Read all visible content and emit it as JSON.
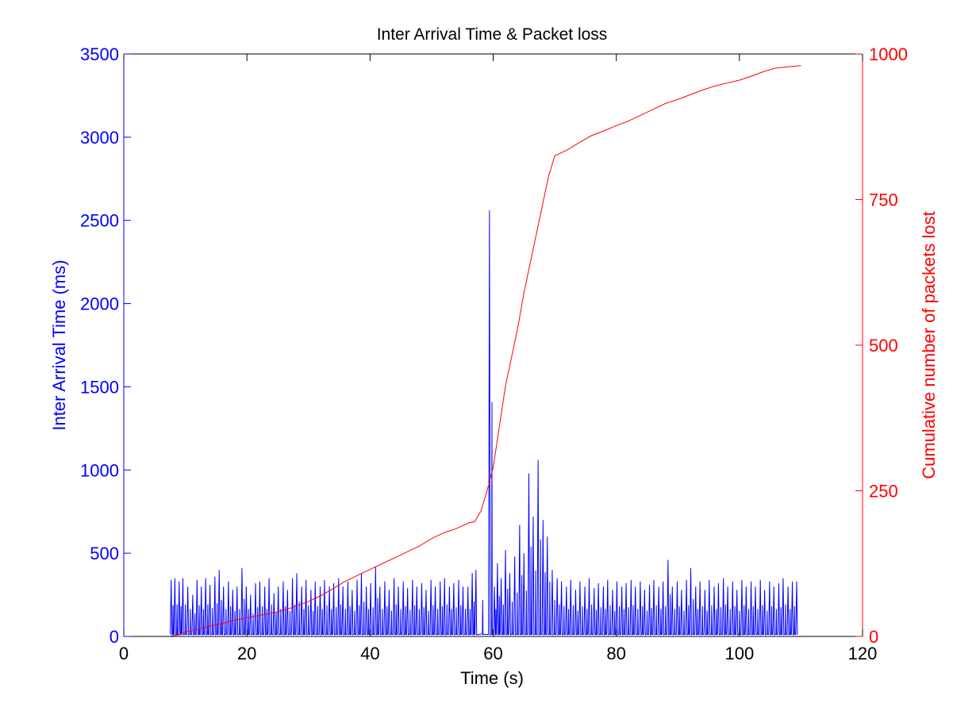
{
  "chart_data": {
    "type": "line",
    "title": "Inter Arrival Time & Packet loss",
    "xlabel": "Time (s)",
    "xlim": [
      0,
      120
    ],
    "x_ticks": [
      "0",
      "20",
      "40",
      "60",
      "80",
      "100",
      "120"
    ],
    "y_left": {
      "label": "Inter Arrival Time (ms)",
      "lim": [
        0,
        3500
      ],
      "ticks": [
        "0",
        "500",
        "1000",
        "1500",
        "2000",
        "2500",
        "3000",
        "3500"
      ],
      "color": "#0000ff"
    },
    "y_right": {
      "label": "Cumulative number of packets lost",
      "lim": [
        0,
        1000
      ],
      "ticks": [
        "0",
        "250",
        "500",
        "750",
        "1000"
      ],
      "color": "#ff0000"
    },
    "series": [
      {
        "axis": "left",
        "color": "#0000ff",
        "style": "spiky",
        "spikes": [
          [
            7.7,
            340
          ],
          [
            8.3,
            350
          ],
          [
            9.0,
            330
          ],
          [
            9.6,
            350
          ],
          [
            10.4,
            300
          ],
          [
            11.2,
            250
          ],
          [
            11.9,
            340
          ],
          [
            12.6,
            300
          ],
          [
            13.3,
            350
          ],
          [
            14.0,
            310
          ],
          [
            14.8,
            360
          ],
          [
            15.5,
            400
          ],
          [
            16.2,
            300
          ],
          [
            17.0,
            330
          ],
          [
            17.7,
            280
          ],
          [
            18.4,
            300
          ],
          [
            19.2,
            410
          ],
          [
            19.9,
            300
          ],
          [
            20.6,
            250
          ],
          [
            21.4,
            320
          ],
          [
            22.1,
            330
          ],
          [
            22.9,
            300
          ],
          [
            23.6,
            350
          ],
          [
            24.4,
            260
          ],
          [
            25.1,
            300
          ],
          [
            25.9,
            330
          ],
          [
            26.6,
            280
          ],
          [
            27.4,
            350
          ],
          [
            28.1,
            380
          ],
          [
            28.9,
            300
          ],
          [
            29.6,
            340
          ],
          [
            30.4,
            280
          ],
          [
            31.1,
            330
          ],
          [
            31.9,
            300
          ],
          [
            32.6,
            340
          ],
          [
            33.4,
            300
          ],
          [
            34.1,
            320
          ],
          [
            34.9,
            350
          ],
          [
            35.6,
            300
          ],
          [
            36.4,
            330
          ],
          [
            37.1,
            280
          ],
          [
            37.9,
            340
          ],
          [
            38.6,
            380
          ],
          [
            39.4,
            300
          ],
          [
            40.1,
            320
          ],
          [
            40.9,
            420
          ],
          [
            41.6,
            300
          ],
          [
            42.4,
            330
          ],
          [
            43.1,
            280
          ],
          [
            43.9,
            350
          ],
          [
            44.6,
            300
          ],
          [
            45.4,
            330
          ],
          [
            46.1,
            290
          ],
          [
            46.9,
            340
          ],
          [
            47.6,
            300
          ],
          [
            48.4,
            320
          ],
          [
            49.1,
            280
          ],
          [
            49.9,
            340
          ],
          [
            50.6,
            300
          ],
          [
            51.4,
            330
          ],
          [
            52.1,
            350
          ],
          [
            52.9,
            300
          ],
          [
            53.6,
            320
          ],
          [
            54.4,
            340
          ],
          [
            55.1,
            300
          ],
          [
            55.9,
            300
          ],
          [
            56.6,
            380
          ],
          [
            57.2,
            400
          ],
          [
            59.4,
            2560
          ],
          [
            60.2,
            300
          ],
          [
            60.7,
            440
          ],
          [
            61.3,
            350
          ],
          [
            62.0,
            520
          ],
          [
            62.7,
            380
          ],
          [
            63.5,
            480
          ],
          [
            64.3,
            670
          ],
          [
            65.0,
            500
          ],
          [
            65.8,
            980
          ],
          [
            66.5,
            720
          ],
          [
            67.3,
            1060
          ],
          [
            68.1,
            700
          ],
          [
            68.8,
            600
          ],
          [
            69.6,
            400
          ],
          [
            70.4,
            350
          ],
          [
            71.1,
            330
          ],
          [
            71.9,
            300
          ],
          [
            72.6,
            340
          ],
          [
            73.4,
            280
          ],
          [
            74.1,
            330
          ],
          [
            74.9,
            300
          ],
          [
            75.6,
            350
          ],
          [
            76.4,
            290
          ],
          [
            77.1,
            320
          ],
          [
            77.9,
            300
          ],
          [
            78.6,
            340
          ],
          [
            79.4,
            280
          ],
          [
            80.1,
            330
          ],
          [
            80.9,
            300
          ],
          [
            81.6,
            320
          ],
          [
            82.4,
            340
          ],
          [
            83.1,
            300
          ],
          [
            83.9,
            330
          ],
          [
            84.6,
            280
          ],
          [
            85.4,
            310
          ],
          [
            86.1,
            340
          ],
          [
            86.9,
            300
          ],
          [
            87.6,
            330
          ],
          [
            88.4,
            460
          ],
          [
            89.1,
            300
          ],
          [
            89.9,
            330
          ],
          [
            90.6,
            280
          ],
          [
            91.4,
            340
          ],
          [
            92.1,
            410
          ],
          [
            92.9,
            300
          ],
          [
            93.6,
            330
          ],
          [
            94.4,
            280
          ],
          [
            95.1,
            340
          ],
          [
            95.9,
            300
          ],
          [
            96.6,
            320
          ],
          [
            97.4,
            350
          ],
          [
            98.1,
            300
          ],
          [
            98.9,
            330
          ],
          [
            99.6,
            280
          ],
          [
            100.4,
            340
          ],
          [
            101.1,
            300
          ],
          [
            101.9,
            330
          ],
          [
            102.6,
            300
          ],
          [
            103.4,
            340
          ],
          [
            104.1,
            280
          ],
          [
            104.9,
            330
          ],
          [
            105.6,
            300
          ],
          [
            106.4,
            320
          ],
          [
            107.1,
            350
          ],
          [
            107.9,
            300
          ],
          [
            108.6,
            330
          ],
          [
            109.3,
            330
          ]
        ]
      },
      {
        "axis": "right",
        "color": "#ff0000",
        "points": [
          [
            7.5,
            0
          ],
          [
            9,
            3
          ],
          [
            10,
            8
          ],
          [
            12,
            12
          ],
          [
            14,
            18
          ],
          [
            16,
            22
          ],
          [
            18,
            28
          ],
          [
            20,
            32
          ],
          [
            22,
            36
          ],
          [
            24,
            40
          ],
          [
            26,
            45
          ],
          [
            28,
            52
          ],
          [
            30,
            60
          ],
          [
            32,
            70
          ],
          [
            34,
            82
          ],
          [
            36,
            95
          ],
          [
            38,
            105
          ],
          [
            40,
            115
          ],
          [
            42,
            125
          ],
          [
            44,
            135
          ],
          [
            46,
            145
          ],
          [
            48,
            155
          ],
          [
            50,
            168
          ],
          [
            52,
            178
          ],
          [
            54,
            185
          ],
          [
            56,
            195
          ],
          [
            57,
            197
          ],
          [
            58,
            215
          ],
          [
            59,
            250
          ],
          [
            60,
            290
          ],
          [
            61,
            360
          ],
          [
            62,
            430
          ],
          [
            63,
            480
          ],
          [
            64,
            530
          ],
          [
            65,
            590
          ],
          [
            66,
            640
          ],
          [
            67,
            690
          ],
          [
            68,
            740
          ],
          [
            69,
            790
          ],
          [
            70,
            825
          ],
          [
            72,
            835
          ],
          [
            74,
            848
          ],
          [
            76,
            860
          ],
          [
            78,
            868
          ],
          [
            80,
            877
          ],
          [
            82,
            885
          ],
          [
            84,
            895
          ],
          [
            86,
            905
          ],
          [
            88,
            915
          ],
          [
            90,
            922
          ],
          [
            92,
            930
          ],
          [
            94,
            938
          ],
          [
            96,
            945
          ],
          [
            98,
            950
          ],
          [
            100,
            955
          ],
          [
            102,
            962
          ],
          [
            104,
            970
          ],
          [
            106,
            976
          ],
          [
            108,
            978
          ],
          [
            110,
            980
          ]
        ]
      }
    ]
  }
}
